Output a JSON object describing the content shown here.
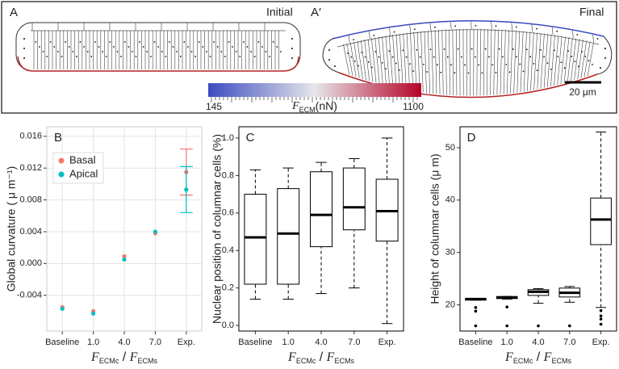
{
  "illustration": {
    "panel_a": "A",
    "panel_a_prime": "A′",
    "initial": "Initial",
    "final": "Final",
    "colorbar": {
      "min": 145,
      "max": 1100,
      "label": [
        {
          "text": "F"
        },
        {
          "text": "ECM",
          "sub": true
        },
        {
          "text": "(nN)"
        }
      ]
    },
    "scale_bar": "20 μm"
  },
  "chart_data": [
    {
      "type": "scatter",
      "panel_label": "B",
      "categories": [
        "Baseline",
        "1.0",
        "4.0",
        "7.0",
        "Exp."
      ],
      "y_label": "Global curvature ( μ m⁻¹)",
      "x_label": [
        {
          "text": "F"
        },
        {
          "text": "ECMc",
          "sub": true
        },
        {
          "text": " / "
        },
        {
          "text": "F"
        },
        {
          "text": "ECMs",
          "sub": true
        }
      ],
      "ylim": [
        -0.0085,
        0.0172
      ],
      "yticks": [
        -0.004,
        {
          "value": 0,
          "label": "0.000"
        },
        0.004,
        0.008,
        0.012,
        0.016
      ],
      "grid": true,
      "legend": "top-left",
      "series": [
        {
          "name": "Basal",
          "color": "#f8766d",
          "values": [
            -0.0055,
            -0.006,
            0.0009,
            0.0038,
            0.0115
          ],
          "errors": [
            null,
            null,
            null,
            null,
            0.0029
          ]
        },
        {
          "name": "Apical",
          "color": "#00bfc4",
          "values": [
            -0.0057,
            -0.0063,
            0.0005,
            0.004,
            0.0093
          ],
          "errors": [
            null,
            null,
            null,
            null,
            0.0029
          ]
        }
      ]
    },
    {
      "type": "box",
      "panel_label": "C",
      "categories": [
        "Baseline",
        "1.0",
        "4.0",
        "7.0",
        "Exp."
      ],
      "y_label": "Nuclear position of columnar  cells  (%)",
      "x_label": [
        {
          "text": "F"
        },
        {
          "text": "ECMc",
          "sub": true
        },
        {
          "text": " / "
        },
        {
          "text": "F"
        },
        {
          "text": "ECMs",
          "sub": true
        }
      ],
      "ylim": [
        -0.03,
        1.06
      ],
      "yticks": [
        {
          "value": 0,
          "label": "0.0"
        },
        0.2,
        0.4,
        0.6,
        0.8,
        {
          "value": 1,
          "label": "1.0"
        }
      ],
      "boxes": [
        {
          "low": 0.14,
          "q1": 0.22,
          "median": 0.47,
          "q3": 0.7,
          "high": 0.83
        },
        {
          "low": 0.14,
          "q1": 0.22,
          "median": 0.49,
          "q3": 0.73,
          "high": 0.84
        },
        {
          "low": 0.17,
          "q1": 0.42,
          "median": 0.59,
          "q3": 0.82,
          "high": 0.87
        },
        {
          "low": 0.2,
          "q1": 0.51,
          "median": 0.63,
          "q3": 0.84,
          "high": 0.89
        },
        {
          "low": 0.01,
          "q1": 0.45,
          "median": 0.61,
          "q3": 0.78,
          "high": 1.0
        }
      ]
    },
    {
      "type": "box",
      "panel_label": "D",
      "categories": [
        "Baseline",
        "1.0",
        "4.0",
        "7.0",
        "Exp."
      ],
      "y_label": "Height of columnar cells (μ m)",
      "x_label": [
        {
          "text": "F"
        },
        {
          "text": "ECMc",
          "sub": true
        },
        {
          "text": " / "
        },
        {
          "text": "F"
        },
        {
          "text": "ECMs",
          "sub": true
        }
      ],
      "ylim": [
        15,
        54
      ],
      "yticks": [
        20,
        30,
        40,
        50
      ],
      "boxes": [
        {
          "low": 20.9,
          "q1": 20.9,
          "median": 21.1,
          "q3": 21.2,
          "high": 21.2,
          "outliers": [
            19.5,
            18.8,
            16.0
          ]
        },
        {
          "low": 21.1,
          "q1": 21.2,
          "median": 21.4,
          "q3": 21.6,
          "high": 21.6,
          "outliers": [
            19.6,
            16.0
          ]
        },
        {
          "low": 20.3,
          "q1": 21.8,
          "median": 22.5,
          "q3": 22.9,
          "high": 23.1,
          "outliers": [
            16.0
          ]
        },
        {
          "low": 20.5,
          "q1": 21.5,
          "median": 22.3,
          "q3": 23.2,
          "high": 23.5,
          "outliers": [
            16.0
          ]
        },
        {
          "low": 19.5,
          "q1": 31.5,
          "median": 36.3,
          "q3": 40.4,
          "high": 53,
          "outliers": [
            18.9,
            17.9,
            17.3,
            16.3
          ]
        }
      ]
    }
  ]
}
